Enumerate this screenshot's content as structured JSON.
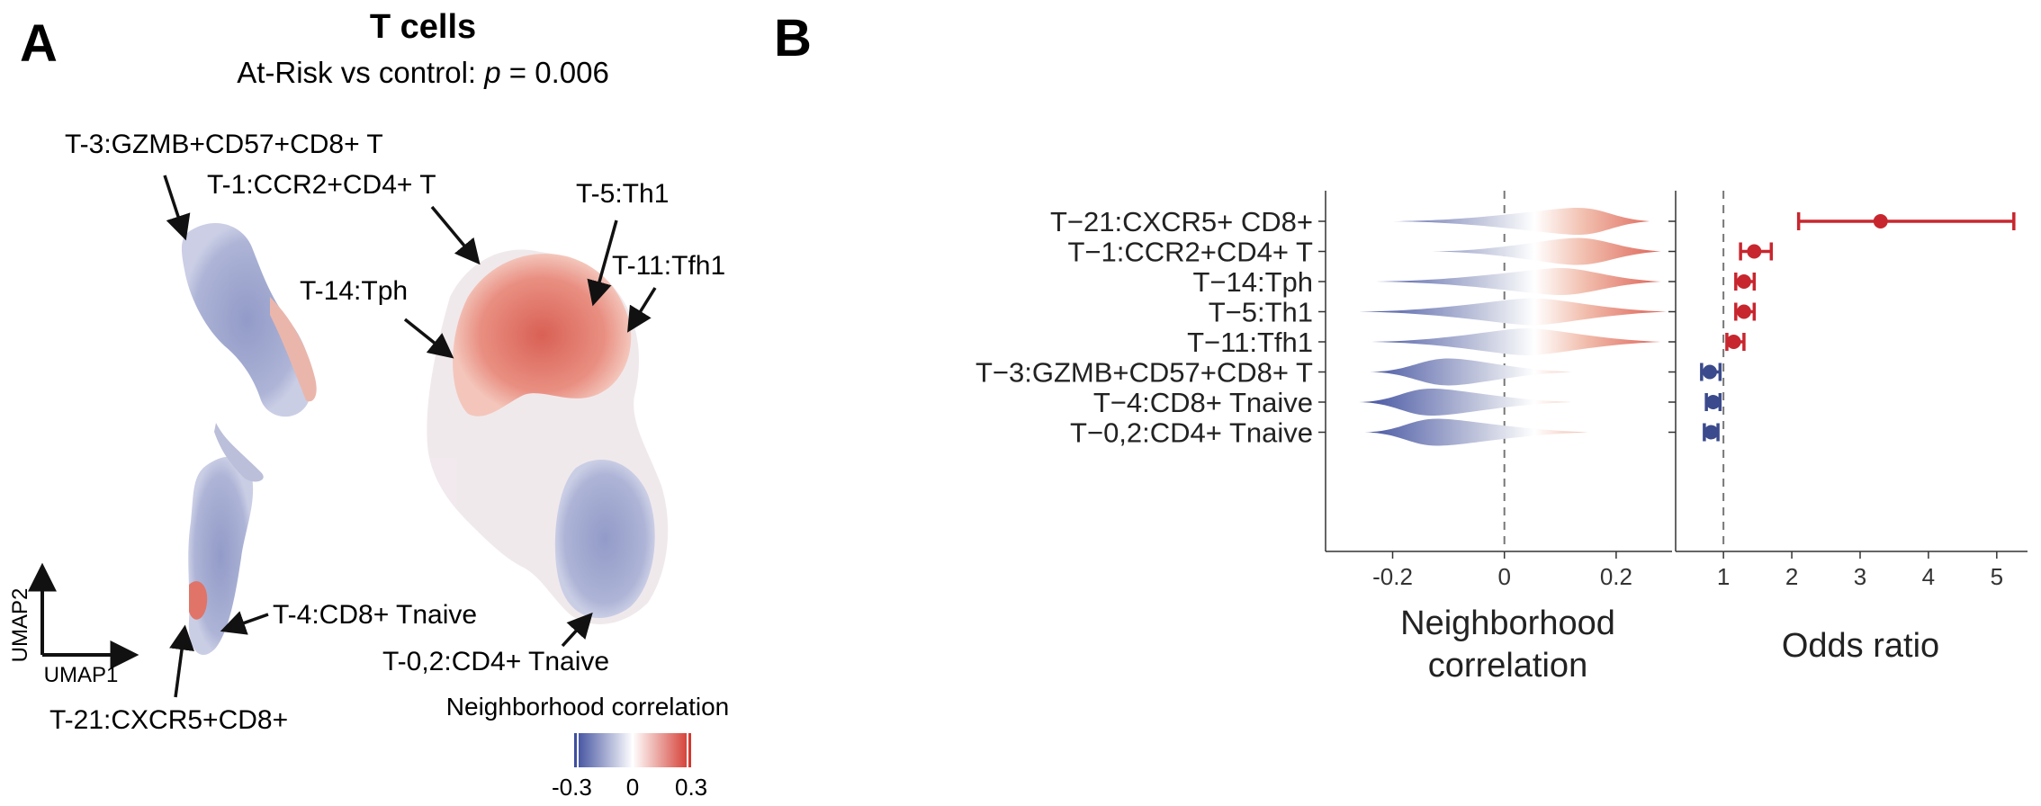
{
  "panel_a": {
    "letter": "A",
    "title": "T cells",
    "subtitle_prefix": "At-Risk vs control: ",
    "subtitle_p": "p",
    "subtitle_suffix": " = 0.006",
    "axis_x": "UMAP1",
    "axis_y": "UMAP2",
    "labels": [
      "T-3:GZMB+CD57+CD8+ T",
      "T-1:CCR2+CD4+ T",
      "T-5:Th1",
      "T-11:Tfh1",
      "T-14:Tph",
      "T-4:CD8+ Tnaive",
      "T-0,2:CD4+ Tnaive",
      "T-21:CXCR5+CD8+"
    ],
    "legend": {
      "title": "Neighborhood correlation",
      "ticks": [
        "-0.3",
        "0",
        "0.3"
      ],
      "colors": {
        "low": "#3a4a9c",
        "mid": "#ffffff",
        "high": "#d2352b"
      }
    }
  },
  "panel_b": {
    "letter": "B"
  },
  "chart_data": [
    {
      "type": "violin",
      "xlabel": [
        "Neighborhood",
        "correlation"
      ],
      "xticks": [
        "-0.2",
        "0",
        "0.2"
      ],
      "xlim": [
        -0.32,
        0.3
      ],
      "categories": [
        "T−21:CXCR5+ CD8+",
        "T−1:CCR2+CD4+ T",
        "T−14:Tph",
        "T−5:Th1",
        "T−11:Tfh1",
        "T−3:GZMB+CD57+CD8+ T",
        "T−4:CD8+ Tnaive",
        "T−0,2:CD4+ Tnaive"
      ],
      "colors": {
        "negative": "#3a4a9c",
        "positive": "#d2352b"
      },
      "distributions": [
        {
          "range": [
            -0.2,
            0.26
          ],
          "mode": 0.13
        },
        {
          "range": [
            -0.13,
            0.28
          ],
          "mode": 0.13
        },
        {
          "range": [
            -0.23,
            0.28
          ],
          "mode": 0.1
        },
        {
          "range": [
            -0.26,
            0.29
          ],
          "mode": 0.05
        },
        {
          "range": [
            -0.24,
            0.28
          ],
          "mode": 0.04
        },
        {
          "range": [
            -0.24,
            0.12
          ],
          "mode": -0.1
        },
        {
          "range": [
            -0.26,
            0.12
          ],
          "mode": -0.13
        },
        {
          "range": [
            -0.25,
            0.15
          ],
          "mode": -0.12
        }
      ]
    },
    {
      "type": "errorbar",
      "xlabel": "Odds ratio",
      "xticks": [
        "1",
        "2",
        "3",
        "4",
        "5"
      ],
      "xlim": [
        0.3,
        5.45
      ],
      "reference_line": 1,
      "categories": [
        "T−21:CXCR5+ CD8+",
        "T−1:CCR2+CD4+ T",
        "T−14:Tph",
        "T−5:Th1",
        "T−11:Tfh1",
        "T−3:GZMB+CD57+CD8+ T",
        "T−4:CD8+ Tnaive",
        "T−0,2:CD4+ Tnaive"
      ],
      "estimate": [
        3.3,
        1.45,
        1.3,
        1.3,
        1.15,
        0.8,
        0.85,
        0.82
      ],
      "lower": [
        2.1,
        1.25,
        1.18,
        1.18,
        1.05,
        0.68,
        0.75,
        0.72
      ],
      "upper": [
        5.25,
        1.7,
        1.45,
        1.45,
        1.3,
        0.95,
        0.95,
        0.92
      ],
      "colors": {
        "up": "#c8262e",
        "down": "#3a4a8c"
      }
    }
  ]
}
